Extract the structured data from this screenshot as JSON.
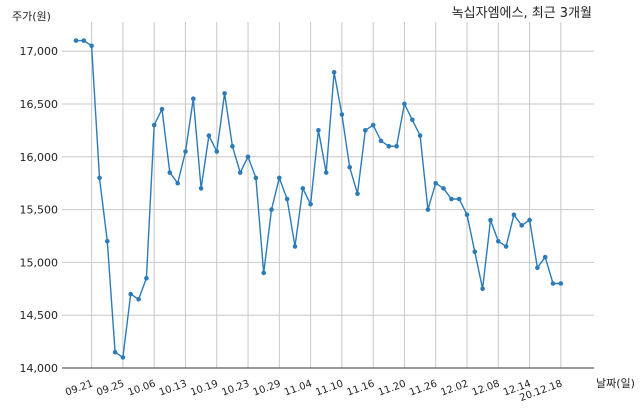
{
  "chart_data": {
    "type": "line",
    "title": "녹십자엠에스, 최근 3개월",
    "ylabel": "주가(원)",
    "xlabel": "날짜(일)",
    "ylim": [
      14000,
      17200
    ],
    "yticks": [
      "14,000",
      "14,500",
      "15,000",
      "15,500",
      "16,000",
      "16,500",
      "17,000"
    ],
    "ytick_values": [
      14000,
      14500,
      15000,
      15500,
      16000,
      16500,
      17000
    ],
    "grid": true,
    "line_color": "#2b7bb9",
    "xtick_labels": [
      "09.21",
      "09.25",
      "10.06",
      "10.13",
      "10.19",
      "10.23",
      "10.29",
      "11.04",
      "11.10",
      "11.16",
      "11.20",
      "11.26",
      "12.02",
      "12.08",
      "12.14",
      "20.12.18"
    ],
    "xtick_index": [
      2,
      6,
      10,
      14,
      18,
      22,
      26,
      30,
      34,
      38,
      42,
      46,
      50,
      54,
      58,
      62
    ],
    "values": [
      17100,
      17100,
      17050,
      15800,
      15200,
      14150,
      14100,
      14700,
      14650,
      14850,
      16300,
      16450,
      15850,
      15750,
      16050,
      16550,
      15700,
      16200,
      16050,
      16600,
      16100,
      15850,
      16000,
      15800,
      14900,
      15500,
      15800,
      15600,
      15150,
      15700,
      15550,
      16250,
      15850,
      16800,
      16400,
      15900,
      15650,
      16250,
      16300,
      16150,
      16100,
      16100,
      16500,
      16350,
      16200,
      15500,
      15750,
      15700,
      15600,
      15600,
      15450,
      15100,
      14750,
      15400,
      15200,
      15150,
      15450,
      15350,
      15400,
      14950,
      15050,
      14800,
      14800
    ]
  }
}
